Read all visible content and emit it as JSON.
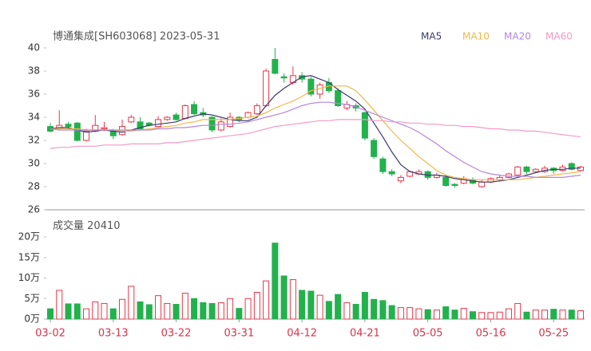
{
  "chart_data": [
    {
      "type": "candlestick",
      "title": "博通集成[SH603068] 2023-05-31",
      "open": [
        33.2,
        33.0,
        33.4,
        33.5,
        32.0,
        32.8,
        33.0,
        32.8,
        32.5,
        33.6,
        33.6,
        33.5,
        33.2,
        33.8,
        34.2,
        33.9,
        35.1,
        34.4,
        34.0,
        32.9,
        33.2,
        34.0,
        34.0,
        34.3,
        35.0,
        39.0,
        37.5,
        37.0,
        37.6,
        37.3,
        36.0,
        37.0,
        36.3,
        34.8,
        35.0,
        34.4,
        32.0,
        30.4,
        29.3,
        28.5,
        28.9,
        29.1,
        29.3,
        28.8,
        28.8,
        28.2,
        28.3,
        28.6,
        28.0,
        28.4,
        28.6,
        28.8,
        29.0,
        29.7,
        29.3,
        29.3,
        29.6,
        29.4,
        30.0,
        29.4
      ],
      "high": [
        33.5,
        34.6,
        33.6,
        33.6,
        33.0,
        34.2,
        33.6,
        33.0,
        33.8,
        34.2,
        34.0,
        33.6,
        34.1,
        34.1,
        34.4,
        35.1,
        35.4,
        34.8,
        34.1,
        33.9,
        34.4,
        34.1,
        34.5,
        35.2,
        38.2,
        40.0,
        37.8,
        38.4,
        37.9,
        37.5,
        37.0,
        37.4,
        36.5,
        35.4,
        35.2,
        34.5,
        32.2,
        30.6,
        29.5,
        29.0,
        29.4,
        29.5,
        29.4,
        29.2,
        29.0,
        28.3,
        28.9,
        28.8,
        28.6,
        28.8,
        29.0,
        29.2,
        29.8,
        29.8,
        29.6,
        29.8,
        29.7,
        29.9,
        30.1,
        29.8
      ],
      "low": [
        32.7,
        32.9,
        33.0,
        31.9,
        31.9,
        32.7,
        32.8,
        32.1,
        32.4,
        33.5,
        32.9,
        33.2,
        33.1,
        33.7,
        33.7,
        33.8,
        34.2,
        34.0,
        32.7,
        32.8,
        33.1,
        33.6,
        33.9,
        34.2,
        34.9,
        37.7,
        37.0,
        36.8,
        37.0,
        35.8,
        35.6,
        36.1,
        34.9,
        34.6,
        34.5,
        32.0,
        30.4,
        29.1,
        28.9,
        28.3,
        28.8,
        29.0,
        28.6,
        28.7,
        28.0,
        27.9,
        28.2,
        28.2,
        27.9,
        28.3,
        28.5,
        28.7,
        28.9,
        29.1,
        29.2,
        29.2,
        29.1,
        29.3,
        29.4,
        29.3
      ],
      "close": [
        32.8,
        33.3,
        33.2,
        32.0,
        32.8,
        33.3,
        33.1,
        32.4,
        33.2,
        34.0,
        33.0,
        33.3,
        33.8,
        34.0,
        33.8,
        35.0,
        34.3,
        34.2,
        32.9,
        33.6,
        34.0,
        33.8,
        34.4,
        35.0,
        38.0,
        37.8,
        37.4,
        37.6,
        37.3,
        36.0,
        36.8,
        36.3,
        35.0,
        35.1,
        34.8,
        32.2,
        30.6,
        29.3,
        29.1,
        28.8,
        29.3,
        29.3,
        28.8,
        29.0,
        28.1,
        28.1,
        28.7,
        28.3,
        28.4,
        28.7,
        28.8,
        29.1,
        29.7,
        29.3,
        29.5,
        29.6,
        29.4,
        29.7,
        29.5,
        29.7
      ],
      "series": [
        {
          "name": "MA5",
          "color": "#3a3a6e",
          "values": [
            33.0,
            33.1,
            33.1,
            32.9,
            32.7,
            32.8,
            32.9,
            32.8,
            32.7,
            32.9,
            33.1,
            33.3,
            33.4,
            33.5,
            33.6,
            33.9,
            34.1,
            34.3,
            34.2,
            34.0,
            33.8,
            33.7,
            33.7,
            34.0,
            35.0,
            35.9,
            36.5,
            37.0,
            37.5,
            37.6,
            37.3,
            37.0,
            36.4,
            35.9,
            35.4,
            34.7,
            33.5,
            32.3,
            31.0,
            29.9,
            29.3,
            29.1,
            29.0,
            29.0,
            28.9,
            28.7,
            28.6,
            28.5,
            28.4,
            28.4,
            28.5,
            28.6,
            28.8,
            29.0,
            29.2,
            29.4,
            29.5,
            29.5,
            29.6,
            29.6
          ]
        },
        {
          "name": "MA10",
          "color": "#f2b84a",
          "values": [
            33.0,
            33.0,
            33.0,
            33.0,
            32.9,
            32.9,
            32.9,
            32.9,
            32.8,
            32.8,
            32.9,
            33.0,
            33.1,
            33.2,
            33.3,
            33.5,
            33.6,
            33.8,
            33.8,
            33.8,
            33.8,
            33.9,
            34.0,
            34.1,
            34.4,
            34.8,
            35.1,
            35.4,
            35.8,
            36.3,
            36.5,
            36.7,
            36.7,
            36.7,
            36.3,
            35.5,
            34.6,
            33.7,
            32.8,
            32.0,
            31.3,
            30.6,
            30.0,
            29.4,
            29.0,
            28.8,
            28.7,
            28.6,
            28.6,
            28.6,
            28.6,
            28.6,
            28.6,
            28.7,
            28.8,
            28.9,
            29.0,
            29.1,
            29.2,
            29.3
          ]
        },
        {
          "name": "MA20",
          "color": "#b486dc",
          "values": [
            33.0,
            32.9,
            32.9,
            32.9,
            32.9,
            32.9,
            32.9,
            32.9,
            32.9,
            32.9,
            32.9,
            32.9,
            33.0,
            33.0,
            33.1,
            33.1,
            33.2,
            33.3,
            33.3,
            33.4,
            33.4,
            33.5,
            33.6,
            33.8,
            34.0,
            34.2,
            34.4,
            34.7,
            35.0,
            35.2,
            35.3,
            35.3,
            35.2,
            35.1,
            34.9,
            34.6,
            34.3,
            34.0,
            33.7,
            33.4,
            33.1,
            32.7,
            32.2,
            31.7,
            31.1,
            30.6,
            30.1,
            29.7,
            29.3,
            29.1,
            29.0,
            28.9,
            28.9,
            28.9,
            28.8,
            28.8,
            28.8,
            28.8,
            28.9,
            29.0
          ]
        },
        {
          "name": "MA60",
          "color": "#f29ac6",
          "values": [
            31.3,
            31.4,
            31.4,
            31.5,
            31.5,
            31.5,
            31.6,
            31.6,
            31.6,
            31.7,
            31.7,
            31.7,
            31.7,
            31.8,
            31.8,
            31.9,
            32.0,
            32.1,
            32.2,
            32.3,
            32.4,
            32.5,
            32.6,
            32.8,
            33.0,
            33.2,
            33.3,
            33.4,
            33.5,
            33.6,
            33.7,
            33.7,
            33.8,
            33.8,
            33.8,
            33.8,
            33.7,
            33.7,
            33.6,
            33.6,
            33.5,
            33.5,
            33.4,
            33.4,
            33.3,
            33.3,
            33.2,
            33.2,
            33.1,
            33.0,
            33.0,
            32.9,
            32.9,
            32.8,
            32.8,
            32.7,
            32.6,
            32.5,
            32.4,
            32.3
          ]
        }
      ],
      "ylim": [
        26,
        40
      ],
      "yticks": [
        26,
        28,
        30,
        32,
        34,
        36,
        38,
        40
      ],
      "up_color": "#e8374a",
      "down_color": "#22b14c"
    },
    {
      "type": "bar",
      "title": "成交量",
      "latest": 20410,
      "categories": [
        "03-02",
        null,
        null,
        null,
        null,
        null,
        null,
        "03-13",
        null,
        null,
        null,
        null,
        null,
        null,
        "03-22",
        null,
        null,
        null,
        null,
        null,
        null,
        "03-31",
        null,
        null,
        null,
        null,
        null,
        null,
        "04-12",
        null,
        null,
        null,
        null,
        null,
        null,
        "04-21",
        null,
        null,
        null,
        null,
        null,
        null,
        "05-05",
        null,
        null,
        null,
        null,
        null,
        null,
        "05-16",
        null,
        null,
        null,
        null,
        null,
        null,
        "05-25",
        null,
        null,
        null
      ],
      "values": [
        2.5,
        7,
        3.7,
        3.7,
        2.5,
        4.2,
        3.8,
        2.5,
        4.8,
        8,
        4.2,
        3.5,
        5.7,
        3.8,
        3.6,
        6.3,
        5,
        4,
        3.8,
        4,
        5,
        2.6,
        5,
        6.5,
        9.3,
        18.5,
        10.5,
        9.6,
        7,
        6.8,
        5.8,
        4.3,
        6,
        4,
        3.6,
        6.5,
        4.8,
        4.5,
        3.3,
        2.8,
        2.8,
        2.5,
        2.3,
        2.2,
        3,
        2.2,
        2.6,
        1.8,
        1.6,
        1.6,
        1.7,
        2.5,
        3.8,
        1.7,
        2.2,
        2.2,
        2.4,
        2.2,
        2.2,
        2.041
      ],
      "ylim": [
        0,
        20
      ],
      "yticks": [
        {
          "value": 0,
          "label": "0万"
        },
        {
          "value": 5,
          "label": "5万"
        },
        {
          "value": 10,
          "label": "10万"
        },
        {
          "value": 15,
          "label": "15万"
        },
        {
          "value": 20,
          "label": "20万"
        }
      ]
    }
  ]
}
